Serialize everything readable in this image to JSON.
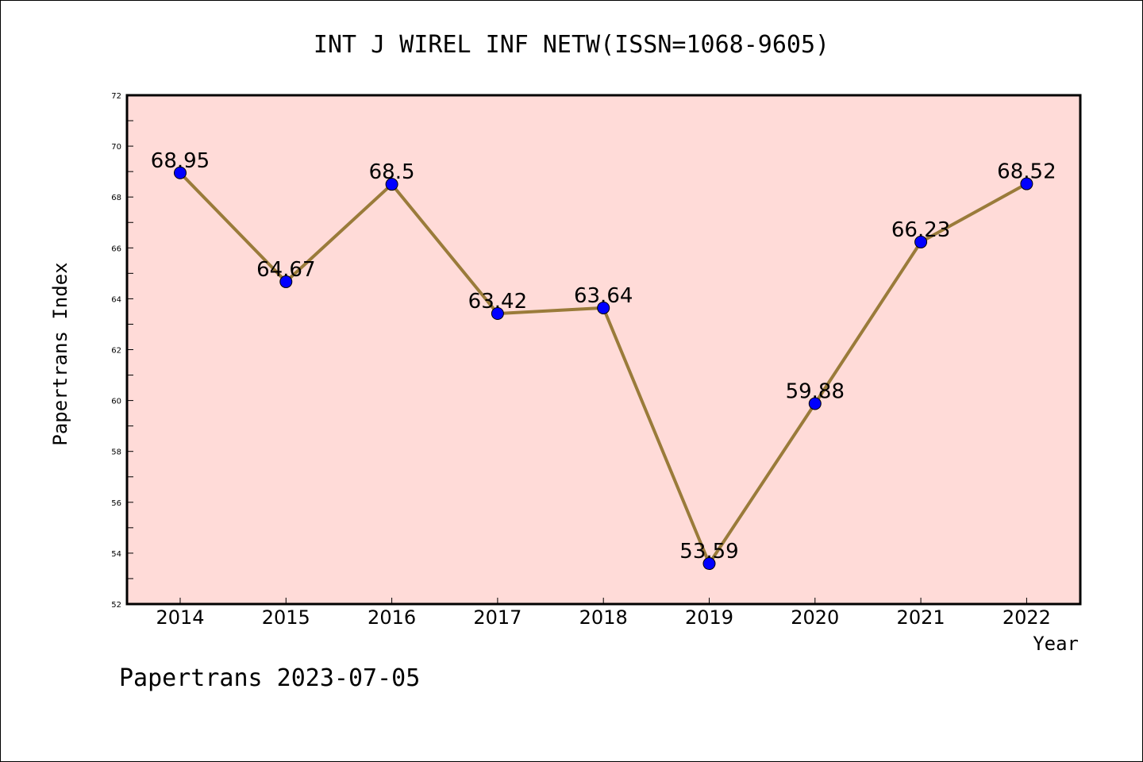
{
  "chart_data": {
    "type": "line",
    "title": "INT J WIREL INF NETW(ISSN=1068-9605)",
    "xlabel": "Year",
    "ylabel": "Papertrans Index",
    "categories": [
      "2014",
      "2015",
      "2016",
      "2017",
      "2018",
      "2019",
      "2020",
      "2021",
      "2022"
    ],
    "values": [
      68.95,
      64.67,
      68.5,
      63.42,
      63.64,
      53.59,
      59.88,
      66.23,
      68.52
    ],
    "data_labels": [
      "68.95",
      "64.67",
      "68.5",
      "63.42",
      "63.64",
      "53.59",
      "59.88",
      "66.23",
      "68.52"
    ],
    "ylim": [
      52,
      72
    ],
    "yticks": [
      52,
      54,
      56,
      58,
      60,
      62,
      64,
      66,
      68,
      70,
      72
    ],
    "grid": false,
    "legend": "none",
    "colors": {
      "plot_background": "#ffdbd8",
      "line": "#9a7b3a",
      "marker": "#0000ff"
    }
  },
  "footer": {
    "text": "Papertrans 2023-07-05"
  }
}
